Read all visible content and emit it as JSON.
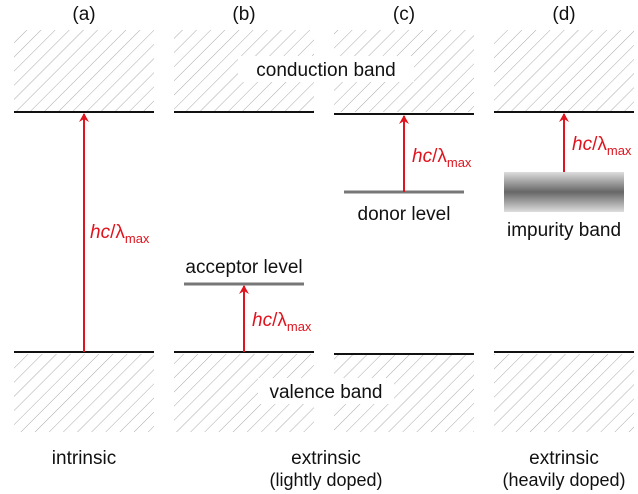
{
  "panels": [
    {
      "label": "(a)"
    },
    {
      "label": "(b)"
    },
    {
      "label": "(c)"
    },
    {
      "label": "(d)"
    }
  ],
  "bands": {
    "conduction": "conduction band",
    "valence": "valence band"
  },
  "levels": {
    "acceptor": "acceptor level",
    "donor": "donor level",
    "impurity": "impurity band"
  },
  "transition_label": {
    "italic": "hc",
    "symbol": "/λ",
    "subscript": "max"
  },
  "captions": {
    "intrinsic": "intrinsic",
    "lightly": {
      "main": "extrinsic",
      "sub": "(lightly doped)"
    },
    "heavily": {
      "main": "extrinsic",
      "sub": "(heavily doped)"
    }
  }
}
